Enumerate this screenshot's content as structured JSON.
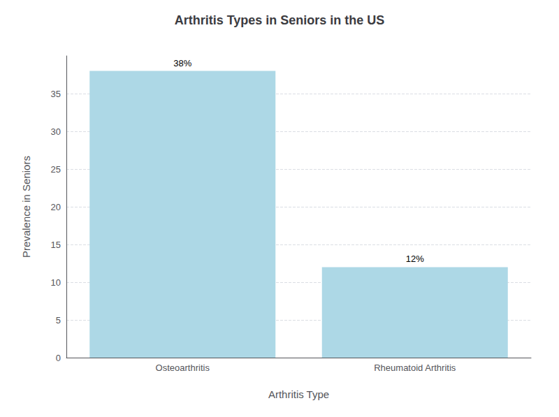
{
  "chart_data": {
    "type": "bar",
    "title": "Arthritis Types in Seniors in the US",
    "xlabel": "Arthritis Type",
    "ylabel": "Prevalence in Seniors",
    "categories": [
      "Osteoarthritis",
      "Rheumatoid Arthritis"
    ],
    "values": [
      38,
      12
    ],
    "value_labels": [
      "38%",
      "12%"
    ],
    "data_labels": true,
    "color": "#add8e6",
    "ylim": [
      0,
      40
    ],
    "yticks": [
      0,
      5,
      10,
      15,
      20,
      25,
      30,
      35
    ],
    "grid": true
  }
}
